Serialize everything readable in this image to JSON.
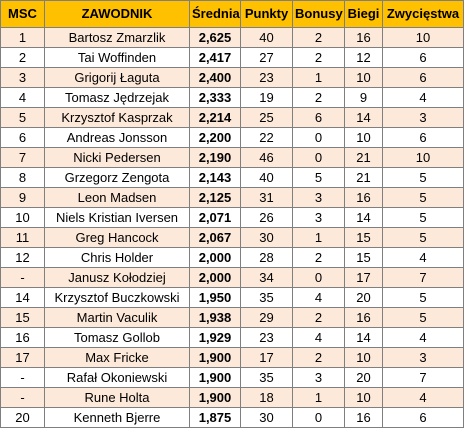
{
  "table": {
    "headers": {
      "msc": "MSC",
      "zawodnik": "ZAWODNIK",
      "srednia": "Średnia",
      "punkty": "Punkty",
      "bonusy": "Bonusy",
      "biegi": "Biegi",
      "zwyciestwa": "Zwycięstwa"
    },
    "rows": [
      {
        "msc": "1",
        "zawodnik": "Bartosz Zmarzlik",
        "srednia": "2,625",
        "punkty": "40",
        "bonusy": "2",
        "biegi": "16",
        "zwyciestwa": "10"
      },
      {
        "msc": "2",
        "zawodnik": "Tai Woffinden",
        "srednia": "2,417",
        "punkty": "27",
        "bonusy": "2",
        "biegi": "12",
        "zwyciestwa": "6"
      },
      {
        "msc": "3",
        "zawodnik": "Grigorij Łaguta",
        "srednia": "2,400",
        "punkty": "23",
        "bonusy": "1",
        "biegi": "10",
        "zwyciestwa": "6"
      },
      {
        "msc": "4",
        "zawodnik": "Tomasz Jędrzejak",
        "srednia": "2,333",
        "punkty": "19",
        "bonusy": "2",
        "biegi": "9",
        "zwyciestwa": "4"
      },
      {
        "msc": "5",
        "zawodnik": "Krzysztof Kasprzak",
        "srednia": "2,214",
        "punkty": "25",
        "bonusy": "6",
        "biegi": "14",
        "zwyciestwa": "3"
      },
      {
        "msc": "6",
        "zawodnik": "Andreas Jonsson",
        "srednia": "2,200",
        "punkty": "22",
        "bonusy": "0",
        "biegi": "10",
        "zwyciestwa": "6"
      },
      {
        "msc": "7",
        "zawodnik": "Nicki Pedersen",
        "srednia": "2,190",
        "punkty": "46",
        "bonusy": "0",
        "biegi": "21",
        "zwyciestwa": "10"
      },
      {
        "msc": "8",
        "zawodnik": "Grzegorz Zengota",
        "srednia": "2,143",
        "punkty": "40",
        "bonusy": "5",
        "biegi": "21",
        "zwyciestwa": "5"
      },
      {
        "msc": "9",
        "zawodnik": "Leon Madsen",
        "srednia": "2,125",
        "punkty": "31",
        "bonusy": "3",
        "biegi": "16",
        "zwyciestwa": "5"
      },
      {
        "msc": "10",
        "zawodnik": "Niels Kristian Iversen",
        "srednia": "2,071",
        "punkty": "26",
        "bonusy": "3",
        "biegi": "14",
        "zwyciestwa": "5"
      },
      {
        "msc": "11",
        "zawodnik": "Greg Hancock",
        "srednia": "2,067",
        "punkty": "30",
        "bonusy": "1",
        "biegi": "15",
        "zwyciestwa": "5"
      },
      {
        "msc": "12",
        "zawodnik": "Chris Holder",
        "srednia": "2,000",
        "punkty": "28",
        "bonusy": "2",
        "biegi": "15",
        "zwyciestwa": "4"
      },
      {
        "msc": "-",
        "zawodnik": "Janusz Kołodziej",
        "srednia": "2,000",
        "punkty": "34",
        "bonusy": "0",
        "biegi": "17",
        "zwyciestwa": "7"
      },
      {
        "msc": "14",
        "zawodnik": "Krzysztof Buczkowski",
        "srednia": "1,950",
        "punkty": "35",
        "bonusy": "4",
        "biegi": "20",
        "zwyciestwa": "5"
      },
      {
        "msc": "15",
        "zawodnik": "Martin Vaculik",
        "srednia": "1,938",
        "punkty": "29",
        "bonusy": "2",
        "biegi": "16",
        "zwyciestwa": "5"
      },
      {
        "msc": "16",
        "zawodnik": "Tomasz Gollob",
        "srednia": "1,929",
        "punkty": "23",
        "bonusy": "4",
        "biegi": "14",
        "zwyciestwa": "4"
      },
      {
        "msc": "17",
        "zawodnik": "Max Fricke",
        "srednia": "1,900",
        "punkty": "17",
        "bonusy": "2",
        "biegi": "10",
        "zwyciestwa": "3"
      },
      {
        "msc": "-",
        "zawodnik": "Rafał Okoniewski",
        "srednia": "1,900",
        "punkty": "35",
        "bonusy": "3",
        "biegi": "20",
        "zwyciestwa": "7"
      },
      {
        "msc": "-",
        "zawodnik": "Rune Holta",
        "srednia": "1,900",
        "punkty": "18",
        "bonusy": "1",
        "biegi": "10",
        "zwyciestwa": "4"
      },
      {
        "msc": "20",
        "zawodnik": "Kenneth Bjerre",
        "srednia": "1,875",
        "punkty": "30",
        "bonusy": "0",
        "biegi": "16",
        "zwyciestwa": "6"
      }
    ]
  },
  "colors": {
    "header_bg": "#ffc000",
    "odd_row_bg": "#fde9d9",
    "even_row_bg": "#ffffff",
    "grid": "#7f7f7f"
  }
}
